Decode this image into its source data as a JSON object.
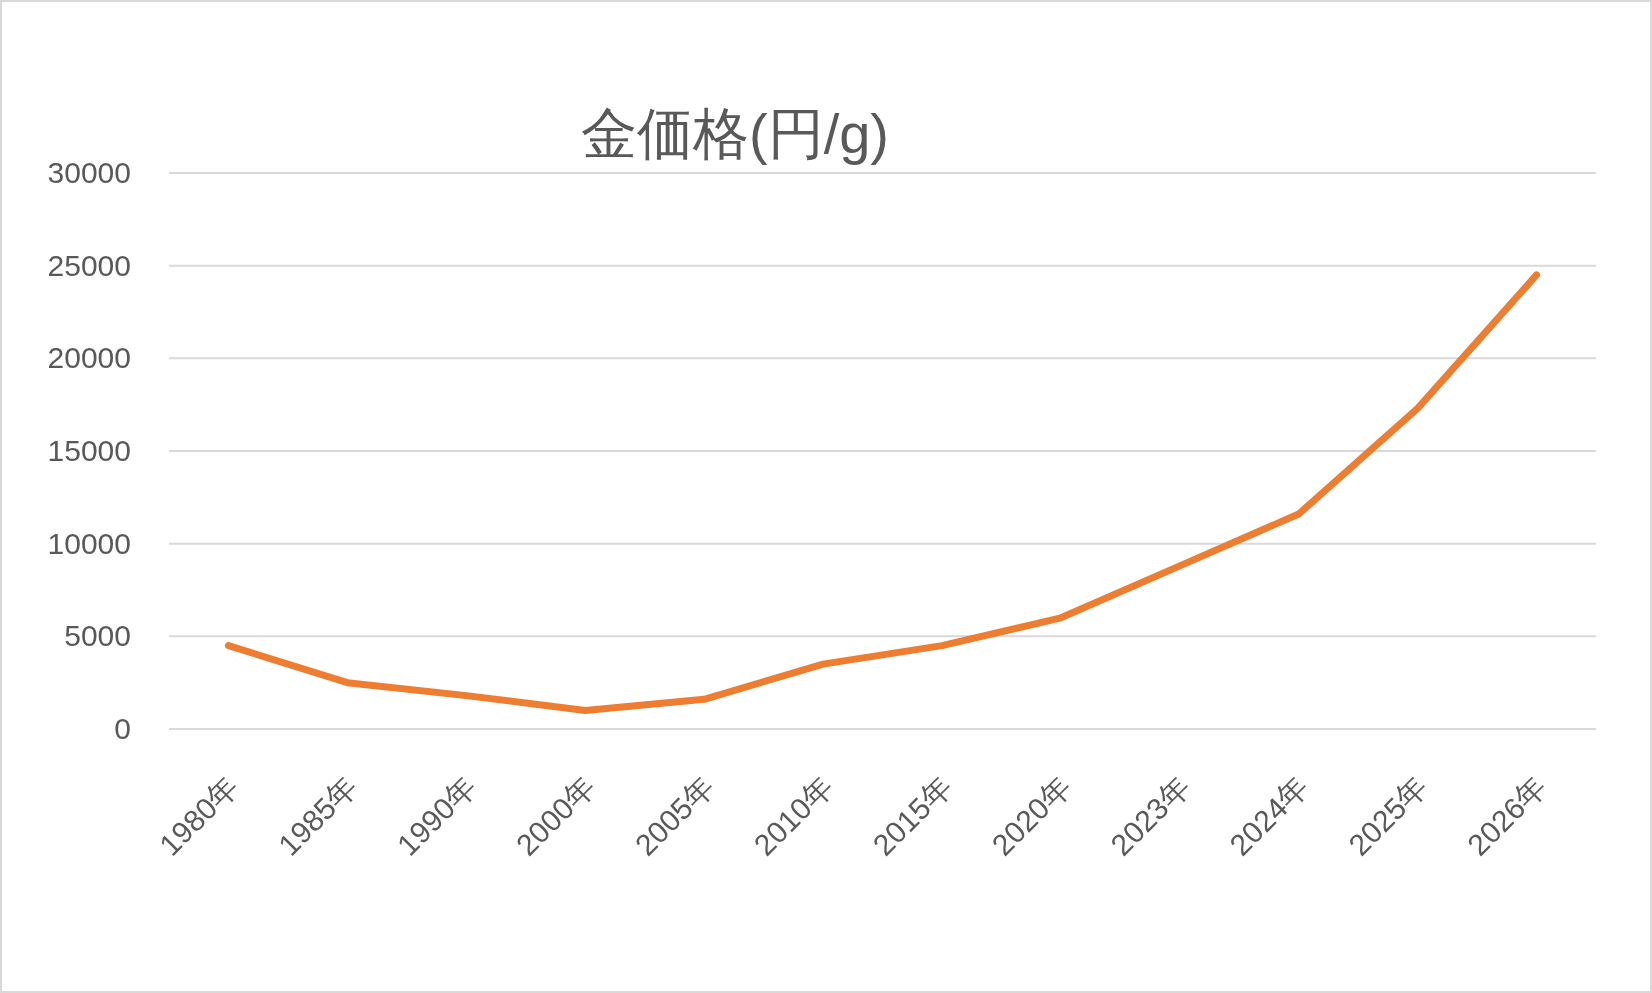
{
  "chart_data": {
    "type": "line",
    "title": "金価格(円/g)",
    "categories": [
      "1980年",
      "1985年",
      "1990年",
      "2000年",
      "2005年",
      "2010年",
      "2015年",
      "2020年",
      "2023年",
      "2024年",
      "2025年",
      "2026年"
    ],
    "series": [
      {
        "color": "#ed7d31",
        "values": [
          4500,
          2500,
          1800,
          1000,
          1600,
          3500,
          4500,
          6000,
          8800,
          11600,
          17300,
          24500
        ]
      }
    ],
    "ylim": [
      0,
      30000
    ],
    "yticks": [
      0,
      5000,
      10000,
      15000,
      20000,
      25000,
      30000
    ],
    "grid": "y",
    "marker": "none",
    "line_style": "solid"
  }
}
